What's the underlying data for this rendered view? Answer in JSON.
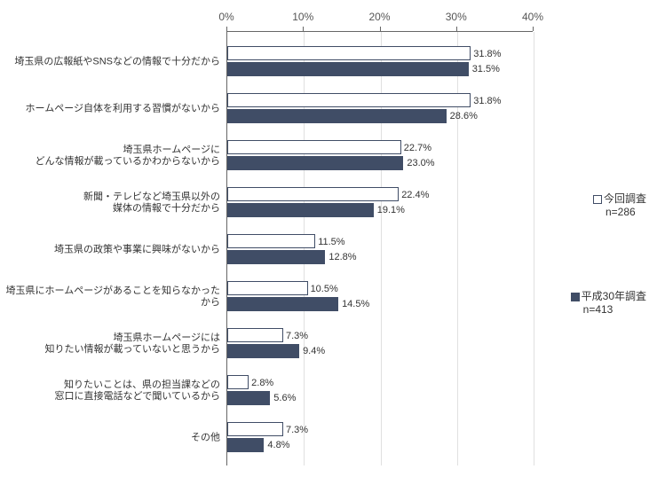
{
  "chart": {
    "type": "bar",
    "xlim": [
      0,
      40
    ],
    "xtick_step": 10,
    "xtick_labels": [
      "0%",
      "10%",
      "20%",
      "30%",
      "40%"
    ],
    "background_color": "#ffffff",
    "grid_color": "#e0e0e0",
    "axis_color": "#666666",
    "label_fontsize": 11,
    "series": {
      "current": {
        "label": "今回調査",
        "n": "n=286",
        "color": "#ffffff",
        "border": "#404d66"
      },
      "previous": {
        "label": "平成30年調査",
        "n": "n=413",
        "color": "#404d66"
      }
    },
    "categories": [
      {
        "label": "埼玉県の広報紙やSNSなどの情報で十分だから",
        "current": 31.8,
        "previous": 31.5
      },
      {
        "label": "ホームページ自体を利用する習慣がないから",
        "current": 31.8,
        "previous": 28.6
      },
      {
        "label": "埼玉県ホームページに\nどんな情報が載っているかわからないから",
        "current": 22.7,
        "previous": 23.0
      },
      {
        "label": "新聞・テレビなど埼玉県以外の\n媒体の情報で十分だから",
        "current": 22.4,
        "previous": 19.1
      },
      {
        "label": "埼玉県の政策や事業に興味がないから",
        "current": 11.5,
        "previous": 12.8
      },
      {
        "label": "埼玉県にホームページがあることを知らなかったから",
        "current": 10.5,
        "previous": 14.5
      },
      {
        "label": "埼玉県ホームページには\n知りたい情報が載っていないと思うから",
        "current": 7.3,
        "previous": 9.4
      },
      {
        "label": "知りたいことは、県の担当課などの\n窓口に直接電話などで聞いているから",
        "current": 2.8,
        "previous": 5.6
      },
      {
        "label": "その他",
        "current": 7.3,
        "previous": 4.8
      }
    ]
  }
}
